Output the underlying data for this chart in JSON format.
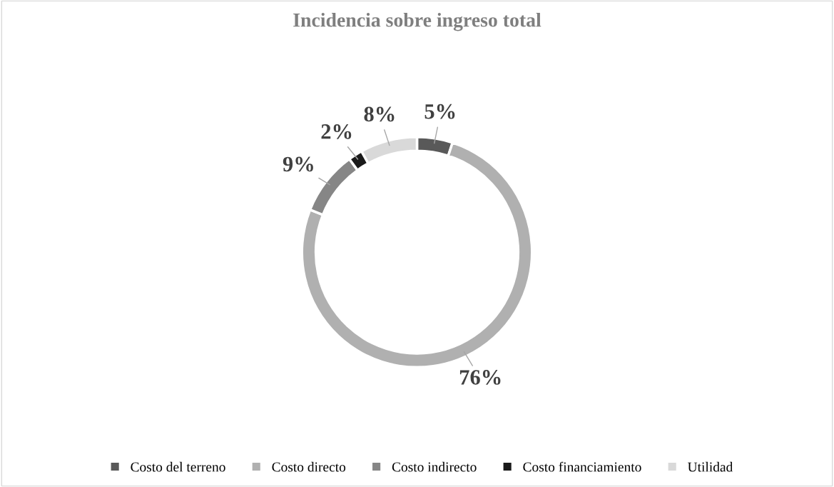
{
  "chart_data": {
    "type": "donut",
    "title": "Incidencia sobre ingreso total",
    "categories": [
      "Costo del terreno",
      "Costo directo",
      "Costo indirecto",
      "Costo financiamiento",
      "Utilidad"
    ],
    "values": [
      5,
      76,
      9,
      2,
      8
    ],
    "colors": [
      "#595959",
      "#b0b0b0",
      "#868686",
      "#1a1a1a",
      "#d9d9d9"
    ],
    "value_labels": [
      "5%",
      "76%",
      "9%",
      "2%",
      "8%"
    ],
    "legend": "bottom"
  }
}
